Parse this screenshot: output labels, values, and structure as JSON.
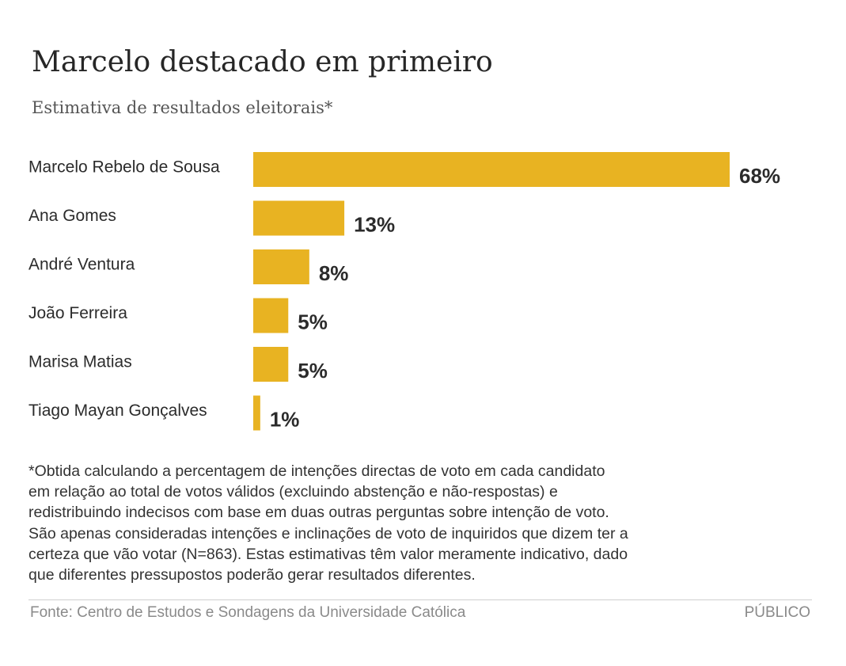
{
  "chart_data": {
    "type": "bar",
    "orientation": "horizontal",
    "title": "Marcelo destacado em primeiro",
    "subtitle": "Estimativa de resultados eleitorais*",
    "categories": [
      "Marcelo Rebelo de Sousa",
      "Ana Gomes",
      "André Ventura",
      "João Ferreira",
      "Marisa Matias",
      "Tiago Mayan Gonçalves"
    ],
    "values": [
      68,
      13,
      8,
      5,
      5,
      1
    ],
    "value_labels": [
      "68%",
      "13%",
      "8%",
      "5%",
      "5%",
      "1%"
    ],
    "unit": "%",
    "xlim": [
      0,
      68
    ],
    "bar_color": "#e8b322",
    "grid": false,
    "legend": "none"
  },
  "note": "*Obtida calculando a percentagem de intenções directas de voto em cada candidato\nem relação ao total de votos válidos (excluindo abstenção e não-respostas) e\nredistribuindo indecisos com base em duas outras perguntas sobre intenção de voto.\nSão apenas consideradas intenções e inclinações de voto de inquiridos que dizem ter a\ncerteza que vão votar (N=863). Estas estimativas têm valor meramente indicativo, dado\nque diferentes pressupostos poderão gerar resultados diferentes.",
  "source": "Fonte: Centro de Estudos e Sondagens da Universidade Católica",
  "brand": "PÚBLICO",
  "colors": {
    "bar": "#e8b322",
    "text": "#2b2b2b",
    "muted": "#8a8a8a"
  }
}
